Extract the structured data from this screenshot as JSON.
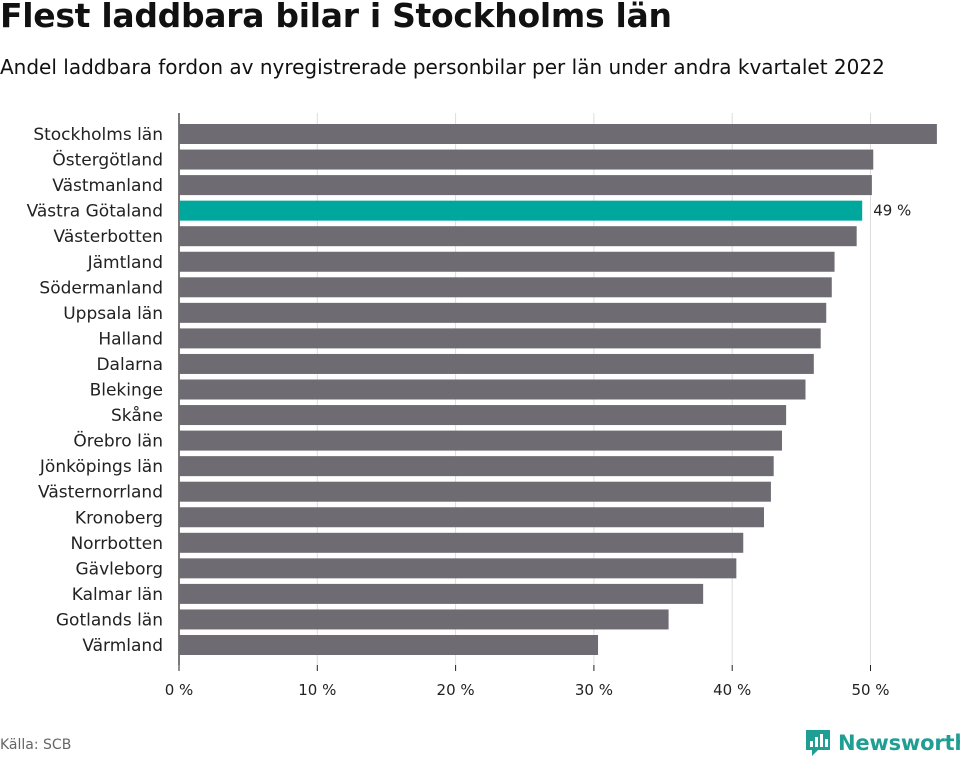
{
  "title": "Flest laddbara bilar i Stockholms län",
  "subtitle": "Andel laddbara fordon av nyregistrerade personbilar per län under andra kvartalet 2022",
  "source": "Källa: SCB",
  "brand": "Newsworthy",
  "colors": {
    "bar": "#6e6b73",
    "highlight": "#00a79d",
    "grid": "#dddddd",
    "brand": "#1f9e94"
  },
  "chart_data": {
    "type": "bar",
    "orientation": "horizontal",
    "categories": [
      "Stockholms län",
      "Östergötland",
      "Västmanland",
      "Västra Götaland",
      "Västerbotten",
      "Jämtland",
      "Södermanland",
      "Uppsala län",
      "Halland",
      "Dalarna",
      "Blekinge",
      "Skåne",
      "Örebro län",
      "Jönköpings län",
      "Västernorrland",
      "Kronoberg",
      "Norrbotten",
      "Gävleborg",
      "Kalmar län",
      "Gotlands län",
      "Värmland"
    ],
    "values": [
      54.8,
      50.2,
      50.1,
      49.4,
      49.0,
      47.4,
      47.2,
      46.8,
      46.4,
      45.9,
      45.3,
      43.9,
      43.6,
      43.0,
      42.8,
      42.3,
      40.8,
      40.3,
      37.9,
      35.4,
      30.3
    ],
    "highlight": "Västra Götaland",
    "highlight_label": "49 %",
    "xlim": [
      0,
      55
    ],
    "xticks": [
      0,
      10,
      20,
      30,
      40,
      50
    ],
    "xtick_labels": [
      "0 %",
      "10 %",
      "20 %",
      "30 %",
      "40 %",
      "50 %"
    ],
    "grid": true
  }
}
